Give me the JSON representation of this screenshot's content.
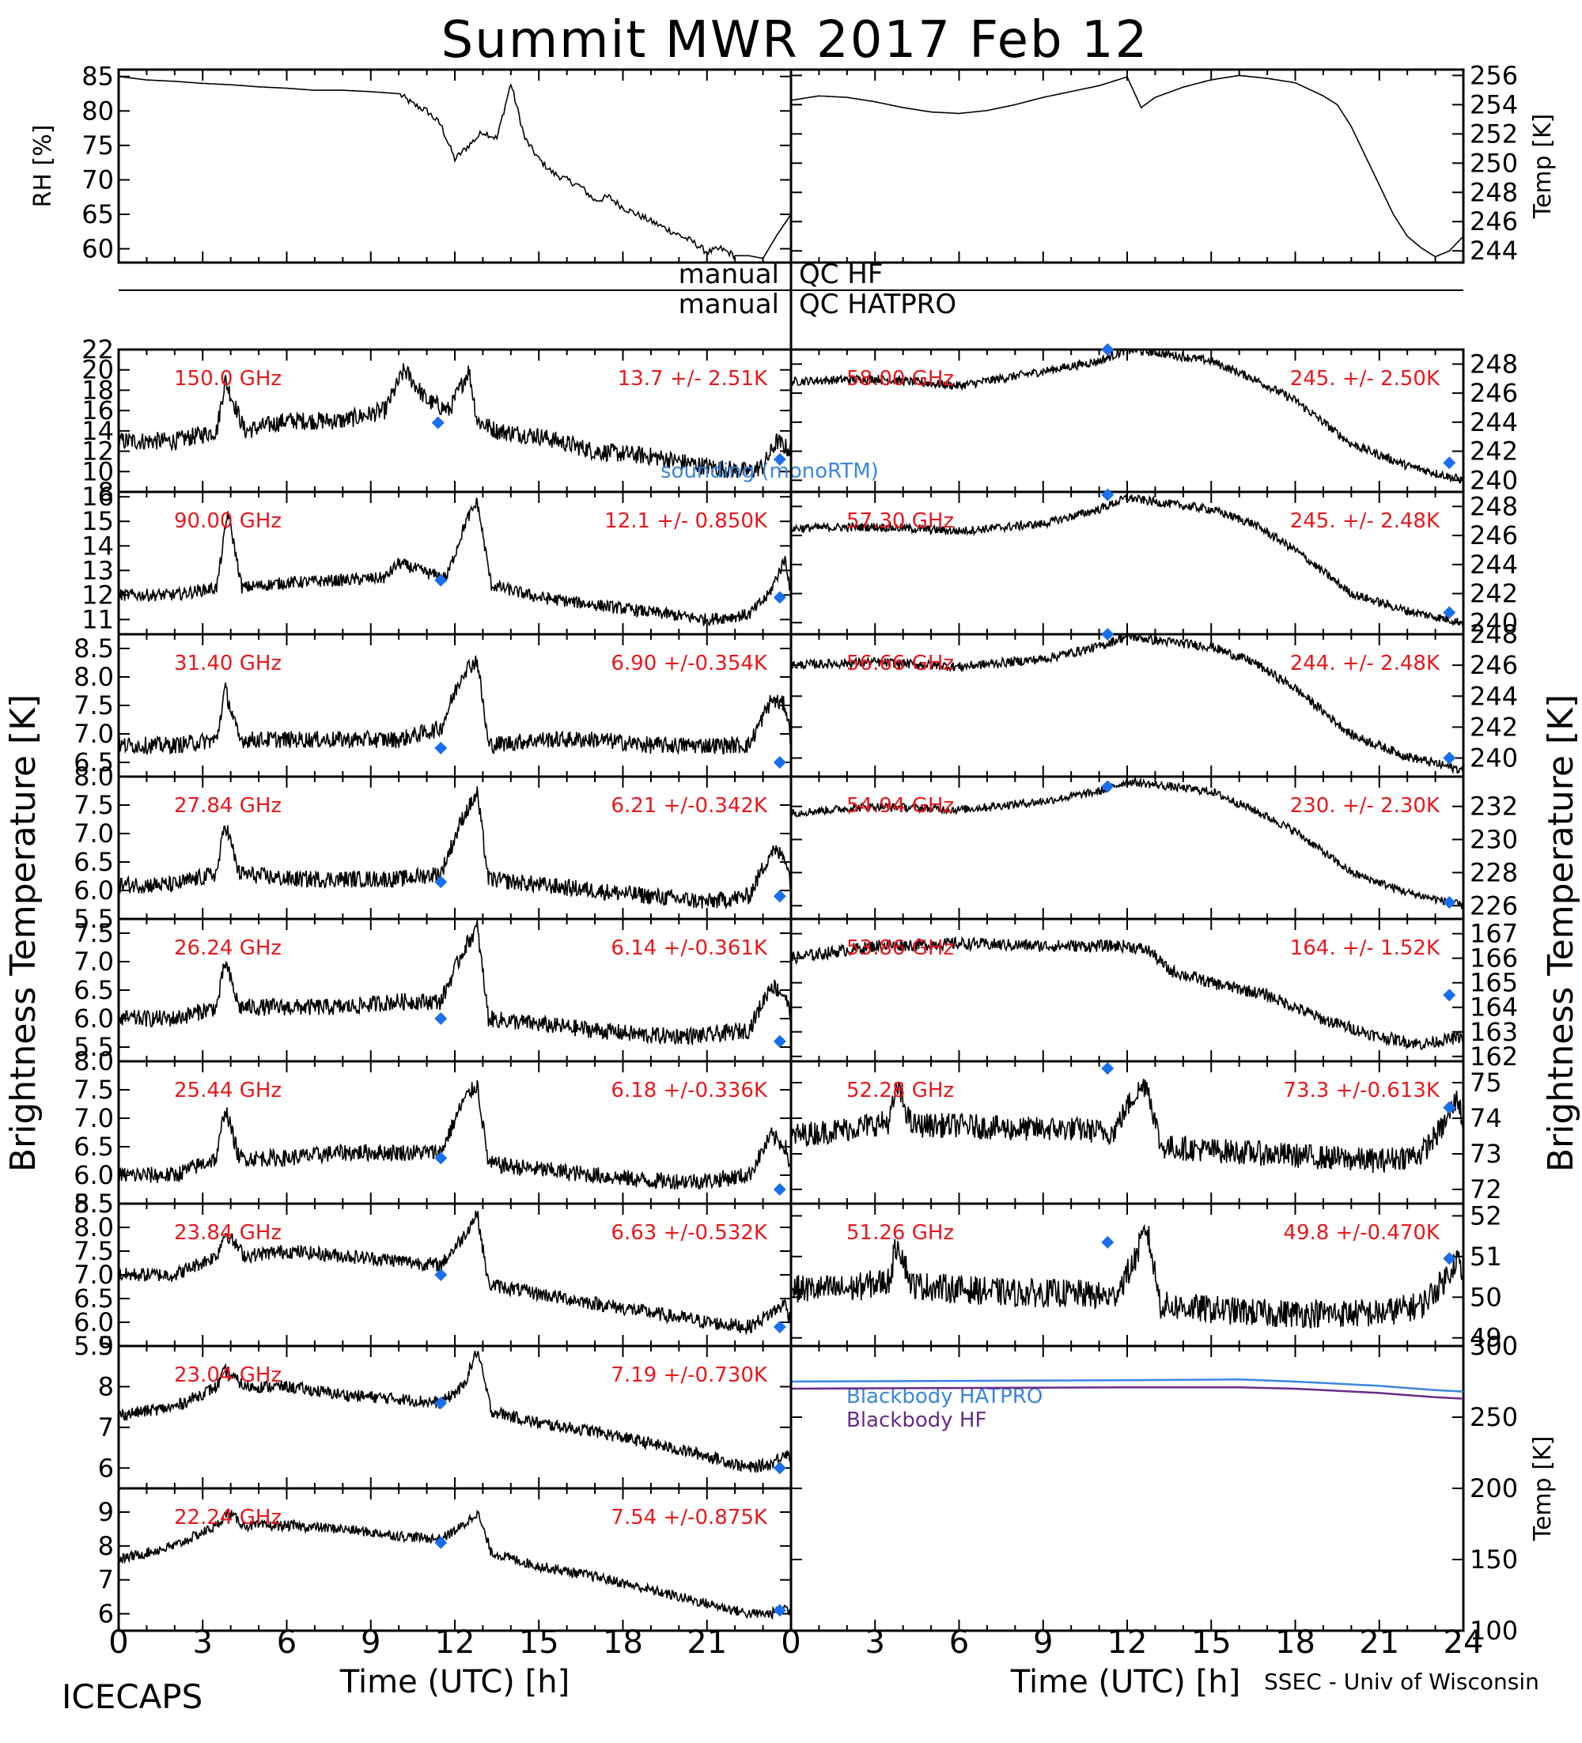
{
  "title": "Summit MWR 2017 Feb 12",
  "footer": {
    "left": "ICECAPS",
    "right": "SSEC - Univ of Wisconsin"
  },
  "qc": {
    "hf": {
      "left": "manual",
      "right": "QC HF"
    },
    "hatpro": {
      "left": "manual",
      "right": "QC HATPRO"
    }
  },
  "axes": {
    "left_ylabel": "Brightness Temperature [K]",
    "right_ylabel": "Brightness Temperature [K]",
    "xlabel": "Time (UTC) [h]",
    "x_ticks": [
      "0",
      "3",
      "6",
      "9",
      "12",
      "15",
      "18",
      "21",
      "24"
    ]
  },
  "colors": {
    "label": "#e8181c",
    "marker": "#1a6ef0",
    "hatpro": "#3a86e0",
    "hf": "#6a2a88",
    "trace": "#000000"
  },
  "chart_data": [
    {
      "id": "rh",
      "type": "line",
      "ylabel": "RH [%]",
      "ylim": [
        58,
        86
      ],
      "yticks": [
        60,
        65,
        70,
        75,
        80,
        85
      ],
      "x": [
        0,
        1,
        2,
        3,
        4,
        5,
        6,
        7,
        8,
        9,
        10,
        10.5,
        11,
        11.5,
        12,
        12.5,
        13,
        13.5,
        14,
        14.5,
        15,
        15.5,
        16,
        16.5,
        17,
        17.5,
        18,
        18.5,
        19,
        19.5,
        20,
        20.5,
        21,
        21.5,
        22,
        22.5,
        23,
        23.5,
        24
      ],
      "values": [
        85,
        84.5,
        84.3,
        84,
        83.8,
        83.5,
        83.3,
        83,
        83,
        82.8,
        82.5,
        81,
        80,
        78,
        73,
        75,
        77,
        76,
        84,
        76,
        73,
        71,
        70,
        69,
        67,
        67.5,
        66,
        65,
        64,
        63,
        62,
        61,
        59.5,
        60,
        59,
        59,
        58.6,
        62,
        65
      ]
    },
    {
      "id": "temp",
      "type": "line",
      "ylabel": "Temp [K]",
      "ylim": [
        243.2,
        256.4
      ],
      "yticks": [
        244,
        246,
        248,
        250,
        252,
        254,
        256
      ],
      "x": [
        0,
        1,
        2,
        3,
        4,
        5,
        6,
        7,
        8,
        9,
        10,
        11,
        11.5,
        12,
        12.5,
        13,
        14,
        15,
        16,
        17,
        18,
        19,
        19.5,
        20,
        20.5,
        21,
        21.5,
        22,
        22.5,
        23,
        23.5,
        24
      ],
      "values": [
        254.3,
        254.6,
        254.5,
        254.2,
        253.8,
        253.5,
        253.4,
        253.6,
        254,
        254.5,
        254.9,
        255.3,
        255.6,
        255.9,
        253.8,
        254.5,
        255.2,
        255.7,
        256,
        255.8,
        255.5,
        254.6,
        254,
        252.5,
        250.5,
        248.5,
        246.5,
        245,
        244.2,
        243.6,
        244,
        245
      ]
    },
    {
      "id": "ch-150",
      "type": "line",
      "label": "150.0 GHz",
      "stat": "13.7 +/-  2.51K",
      "ylim": [
        8,
        22
      ],
      "yticks": [
        8,
        10,
        12,
        14,
        16,
        18,
        20,
        22
      ],
      "x": [
        0,
        2,
        3.5,
        3.8,
        4.5,
        6,
        8,
        9.5,
        10.2,
        11,
        11.8,
        12.5,
        12.8,
        13.5,
        15,
        17,
        19,
        21,
        22.5,
        23,
        23.5,
        24
      ],
      "values": [
        13,
        13,
        14,
        19,
        14,
        15,
        15,
        16,
        20,
        17,
        16,
        20,
        15,
        14,
        13.5,
        12,
        11.5,
        10.5,
        10,
        10.5,
        13,
        12
      ],
      "noise": 0.9,
      "markers": [
        {
          "x": 11.4,
          "y": 14.8
        },
        {
          "x": 23.6,
          "y": 11.2
        }
      ],
      "annotation": "sounding (monoRTM)"
    },
    {
      "id": "ch-5800",
      "type": "line",
      "label": "58.00 GHz",
      "stat": "245. +/- 2.50K",
      "ylim": [
        239.2,
        249
      ],
      "yticks": [
        240,
        242,
        244,
        246,
        248
      ],
      "x": [
        0,
        3,
        6,
        9,
        11,
        12,
        13,
        15,
        16.5,
        18,
        20,
        22,
        24
      ],
      "values": [
        246.8,
        247,
        246.5,
        247.5,
        248.2,
        249,
        248.8,
        248.2,
        247,
        245.5,
        242.5,
        241,
        240
      ],
      "noise": 0.3,
      "markers": [
        {
          "x": 11.3,
          "y": 249
        },
        {
          "x": 23.5,
          "y": 241.2
        }
      ]
    },
    {
      "id": "ch-90",
      "type": "line",
      "label": "90.00 GHz",
      "stat": "12.1 +/- 0.850K",
      "ylim": [
        10.4,
        16.2
      ],
      "yticks": [
        11,
        12,
        13,
        14,
        15,
        16
      ],
      "x": [
        0,
        2,
        3.5,
        3.9,
        4.4,
        6,
        8,
        9.5,
        10,
        11,
        11.7,
        12.4,
        12.8,
        13.3,
        15,
        17,
        19,
        21,
        22.5,
        23.2,
        23.8,
        24
      ],
      "values": [
        12,
        12,
        12.3,
        15.4,
        12.3,
        12.5,
        12.6,
        12.7,
        13.3,
        12.9,
        12.7,
        15,
        15.8,
        12.4,
        11.9,
        11.6,
        11.3,
        11,
        11.2,
        12,
        13.5,
        12
      ],
      "noise": 0.25,
      "markers": [
        {
          "x": 11.5,
          "y": 12.6
        },
        {
          "x": 23.6,
          "y": 11.9
        }
      ]
    },
    {
      "id": "ch-5730",
      "type": "line",
      "label": "57.30 GHz",
      "stat": "245. +/- 2.48K",
      "ylim": [
        239.2,
        249
      ],
      "yticks": [
        240,
        242,
        244,
        246,
        248
      ],
      "x": [
        0,
        3,
        6,
        9,
        11,
        12,
        13,
        15,
        16.5,
        18,
        20,
        22,
        24
      ],
      "values": [
        246.5,
        246.6,
        246.3,
        246.8,
        247.8,
        248.6,
        248.3,
        247.8,
        246.8,
        245,
        242,
        240.8,
        240
      ],
      "noise": 0.3,
      "markers": [
        {
          "x": 11.3,
          "y": 248.8
        },
        {
          "x": 23.5,
          "y": 240.7
        }
      ]
    },
    {
      "id": "ch-314",
      "type": "line",
      "label": "31.40 GHz",
      "stat": "6.90 +/-0.354K",
      "ylim": [
        6.25,
        8.75
      ],
      "yticks": [
        6.5,
        7.0,
        7.5,
        8.0,
        8.5
      ],
      "x": [
        0,
        2,
        3.5,
        3.8,
        4.3,
        6,
        8,
        10,
        11.5,
        12.3,
        12.8,
        13.2,
        15,
        17,
        19,
        21,
        22.5,
        23.3,
        23.8,
        24
      ],
      "values": [
        6.8,
        6.8,
        6.9,
        7.8,
        6.9,
        6.9,
        6.9,
        6.9,
        7.1,
        8.1,
        8.3,
        6.8,
        6.9,
        6.9,
        6.8,
        6.8,
        6.8,
        7.6,
        7.5,
        6.9
      ],
      "noise": 0.15,
      "markers": [
        {
          "x": 11.5,
          "y": 6.75
        },
        {
          "x": 23.6,
          "y": 6.5
        }
      ]
    },
    {
      "id": "ch-5666",
      "type": "line",
      "label": "56.66 GHz",
      "stat": "244. +/- 2.48K",
      "ylim": [
        238.8,
        248
      ],
      "yticks": [
        240,
        242,
        244,
        246,
        248
      ],
      "x": [
        0,
        3,
        6,
        9,
        11,
        12,
        13,
        15,
        16.5,
        18,
        20,
        22,
        24
      ],
      "values": [
        246,
        246.2,
        245.9,
        246.4,
        247.2,
        247.9,
        247.6,
        247.2,
        246.2,
        244.5,
        241.5,
        240.1,
        239.2
      ],
      "noise": 0.3,
      "markers": [
        {
          "x": 11.3,
          "y": 248
        },
        {
          "x": 23.5,
          "y": 240
        }
      ]
    },
    {
      "id": "ch-2784",
      "type": "line",
      "label": "27.84 GHz",
      "stat": "6.21 +/-0.342K",
      "ylim": [
        5.5,
        8.0
      ],
      "yticks": [
        5.5,
        6.0,
        6.5,
        7.0,
        7.5,
        8.0
      ],
      "x": [
        0,
        2,
        3.5,
        3.8,
        4.3,
        6,
        8,
        10,
        11.5,
        12.3,
        12.8,
        13.2,
        15,
        17,
        19,
        21,
        22.5,
        23.3,
        23.8,
        24
      ],
      "values": [
        6.1,
        6.1,
        6.3,
        7.2,
        6.3,
        6.2,
        6.2,
        6.2,
        6.3,
        7.3,
        7.7,
        6.2,
        6.1,
        6.0,
        5.9,
        5.8,
        5.9,
        6.7,
        6.6,
        6.1
      ],
      "noise": 0.15,
      "markers": [
        {
          "x": 11.5,
          "y": 6.15
        },
        {
          "x": 23.6,
          "y": 5.9
        }
      ]
    },
    {
      "id": "ch-5434",
      "type": "line",
      "label": "54.94 GHz",
      "stat": "230. +/- 2.30K",
      "ylim": [
        225.2,
        233.8
      ],
      "yticks": [
        226,
        228,
        230,
        232
      ],
      "x": [
        0,
        3,
        6,
        9,
        11,
        12,
        13,
        15,
        16.5,
        18,
        20,
        22,
        24
      ],
      "values": [
        231.6,
        232,
        231.8,
        232.3,
        232.9,
        233.5,
        233.3,
        232.9,
        231.8,
        230.5,
        228,
        226.8,
        226
      ],
      "noise": 0.25,
      "markers": [
        {
          "x": 11.3,
          "y": 233.2
        },
        {
          "x": 23.5,
          "y": 226.2
        }
      ]
    },
    {
      "id": "ch-2624",
      "type": "line",
      "label": "26.24 GHz",
      "stat": "6.14 +/-0.361K",
      "ylim": [
        5.25,
        7.75
      ],
      "yticks": [
        5.5,
        6.0,
        6.5,
        7.0,
        7.5
      ],
      "x": [
        0,
        2,
        3.5,
        3.8,
        4.3,
        6,
        8,
        10,
        11.5,
        12.3,
        12.8,
        13.2,
        15,
        17,
        19,
        21,
        22.5,
        23.3,
        23.8,
        24
      ],
      "values": [
        6.0,
        6.0,
        6.2,
        7.0,
        6.2,
        6.2,
        6.2,
        6.3,
        6.3,
        7.2,
        7.6,
        6.0,
        5.9,
        5.8,
        5.7,
        5.7,
        5.8,
        6.6,
        6.4,
        6.0
      ],
      "noise": 0.15,
      "markers": [
        {
          "x": 11.5,
          "y": 6.0
        },
        {
          "x": 23.6,
          "y": 5.6
        }
      ]
    },
    {
      "id": "ch-5386",
      "type": "line",
      "label": "53.86 GHz",
      "stat": "164. +/- 1.52K",
      "ylim": [
        161.8,
        167.6
      ],
      "yticks": [
        162,
        163,
        164,
        165,
        166,
        167
      ],
      "x": [
        0,
        3,
        6,
        9,
        12,
        12.8,
        13.5,
        15,
        17,
        19,
        21,
        22.5,
        24
      ],
      "values": [
        166,
        166.5,
        166.6,
        166.5,
        166.5,
        166.3,
        165.5,
        165,
        164.5,
        163.5,
        162.8,
        162.5,
        162.8
      ],
      "noise": 0.25,
      "markers": [
        {
          "x": 23.5,
          "y": 164.5
        }
      ]
    },
    {
      "id": "ch-2544",
      "type": "line",
      "label": "25.44 GHz",
      "stat": "6.18 +/-0.336K",
      "ylim": [
        5.5,
        8.0
      ],
      "yticks": [
        5.5,
        6.0,
        6.5,
        7.0,
        7.5,
        8.0
      ],
      "x": [
        0,
        2,
        3.5,
        3.8,
        4.3,
        6,
        8,
        10,
        11.5,
        12.3,
        12.8,
        13.2,
        15,
        17,
        19,
        21,
        22.5,
        23.3,
        23.8,
        24
      ],
      "values": [
        6.0,
        6.0,
        6.3,
        7.2,
        6.3,
        6.3,
        6.4,
        6.4,
        6.4,
        7.3,
        7.6,
        6.2,
        6.1,
        6.0,
        5.9,
        5.9,
        6.0,
        6.7,
        6.5,
        6.1
      ],
      "noise": 0.15,
      "markers": [
        {
          "x": 11.5,
          "y": 6.3
        },
        {
          "x": 23.6,
          "y": 5.75
        }
      ]
    },
    {
      "id": "ch-5228",
      "type": "line",
      "label": "52.28 GHz",
      "stat": "73.3 +/-0.613K",
      "ylim": [
        71.6,
        75.6
      ],
      "yticks": [
        72,
        73,
        74,
        75
      ],
      "x": [
        0,
        2,
        3.5,
        3.8,
        4.3,
        6,
        8,
        10,
        11.5,
        12.2,
        12.7,
        13.2,
        15,
        17,
        19,
        21,
        22.5,
        23.3,
        23.8,
        24
      ],
      "values": [
        73.5,
        73.7,
        73.9,
        74.9,
        73.8,
        73.8,
        73.7,
        73.7,
        73.6,
        74.6,
        75,
        73.2,
        73.1,
        73.0,
        72.9,
        72.8,
        73.0,
        73.8,
        74.6,
        73.8
      ],
      "noise": 0.35,
      "markers": [
        {
          "x": 11.3,
          "y": 75.4
        },
        {
          "x": 23.5,
          "y": 74.3
        }
      ]
    },
    {
      "id": "ch-2384",
      "type": "line",
      "label": "23.84 GHz",
      "stat": "6.63 +/-0.532K",
      "ylim": [
        5.5,
        8.5
      ],
      "yticks": [
        5.5,
        6.0,
        6.5,
        7.0,
        7.5,
        8.0,
        8.5
      ],
      "x": [
        0,
        2,
        3.5,
        3.8,
        4.5,
        6,
        8,
        10,
        11.5,
        12.3,
        12.8,
        13.2,
        15,
        17,
        19,
        21,
        22.5,
        23.3,
        23.8,
        24
      ],
      "values": [
        7.0,
        7.0,
        7.4,
        7.9,
        7.4,
        7.5,
        7.4,
        7.3,
        7.2,
        7.8,
        8.3,
        6.8,
        6.6,
        6.4,
        6.2,
        6.0,
        5.9,
        6.2,
        6.4,
        6.0
      ],
      "noise": 0.15,
      "markers": [
        {
          "x": 11.5,
          "y": 7.0
        },
        {
          "x": 23.6,
          "y": 5.9
        }
      ]
    },
    {
      "id": "ch-5126",
      "type": "line",
      "label": "51.26 GHz",
      "stat": "49.8 +/-0.470K",
      "ylim": [
        48.8,
        52.3
      ],
      "yticks": [
        49,
        50,
        51,
        52
      ],
      "x": [
        0,
        2,
        3.5,
        3.8,
        4.3,
        6,
        8,
        10,
        11.5,
        12.2,
        12.7,
        13.2,
        15,
        17,
        19,
        21,
        22.5,
        23.3,
        23.8,
        24
      ],
      "values": [
        50.2,
        50.2,
        50.4,
        51.4,
        50.3,
        50.2,
        50.1,
        50.1,
        50.0,
        50.8,
        51.7,
        49.8,
        49.7,
        49.6,
        49.6,
        49.6,
        49.8,
        50.4,
        51,
        50.3
      ],
      "noise": 0.35,
      "markers": [
        {
          "x": 11.3,
          "y": 51.35
        },
        {
          "x": 23.5,
          "y": 50.95
        }
      ]
    },
    {
      "id": "ch-2304",
      "type": "line",
      "label": "23.04 GHz",
      "stat": "7.19 +/-0.730K",
      "ylim": [
        5.5,
        9.0
      ],
      "yticks": [
        6,
        7,
        8,
        9
      ],
      "x": [
        0,
        2,
        3.5,
        3.8,
        4.5,
        6,
        8,
        10,
        11.5,
        12.3,
        12.8,
        13.3,
        15,
        17,
        19,
        21,
        22.5,
        23.3,
        23.8,
        24
      ],
      "values": [
        7.3,
        7.5,
        8.0,
        8.4,
        8.0,
        8.0,
        7.8,
        7.7,
        7.6,
        8.0,
        8.9,
        7.4,
        7.1,
        6.9,
        6.6,
        6.3,
        6.0,
        6.1,
        6.4,
        6.2
      ],
      "noise": 0.15,
      "markers": [
        {
          "x": 11.5,
          "y": 7.6
        },
        {
          "x": 23.6,
          "y": 6.0
        }
      ]
    },
    {
      "id": "blackbody",
      "type": "line",
      "ylabel": "Temp [K]",
      "ylim": [
        100,
        300
      ],
      "yticks": [
        100,
        150,
        200,
        250,
        300
      ],
      "series": [
        {
          "name": "Blackbody HATPRO",
          "x": [
            0,
            6,
            12,
            16,
            18,
            21,
            23,
            24
          ],
          "values": [
            275,
            275.5,
            276,
            276.5,
            275,
            272,
            269,
            268
          ]
        },
        {
          "name": "Blackbody HF",
          "x": [
            0,
            6,
            12,
            16,
            18,
            21,
            23,
            24
          ],
          "values": [
            270,
            270.5,
            271,
            271,
            270,
            267,
            264,
            263
          ]
        }
      ]
    },
    {
      "id": "ch-2224",
      "type": "line",
      "label": "22.24 GHz",
      "stat": "7.54 +/-0.875K",
      "ylim": [
        5.5,
        9.7
      ],
      "yticks": [
        6,
        7,
        8,
        9
      ],
      "x": [
        0,
        2,
        3.5,
        3.9,
        4.5,
        6,
        8,
        10,
        11.5,
        12.3,
        12.8,
        13.3,
        15,
        17,
        19,
        21,
        22.5,
        23.3,
        23.8,
        24
      ],
      "values": [
        7.6,
        8.0,
        8.6,
        9.0,
        8.6,
        8.6,
        8.5,
        8.3,
        8.2,
        8.6,
        9.0,
        7.8,
        7.4,
        7.1,
        6.7,
        6.3,
        6.0,
        6.0,
        6.2,
        6.0
      ],
      "noise": 0.15,
      "markers": [
        {
          "x": 11.5,
          "y": 8.1
        },
        {
          "x": 23.6,
          "y": 6.1
        }
      ]
    }
  ]
}
